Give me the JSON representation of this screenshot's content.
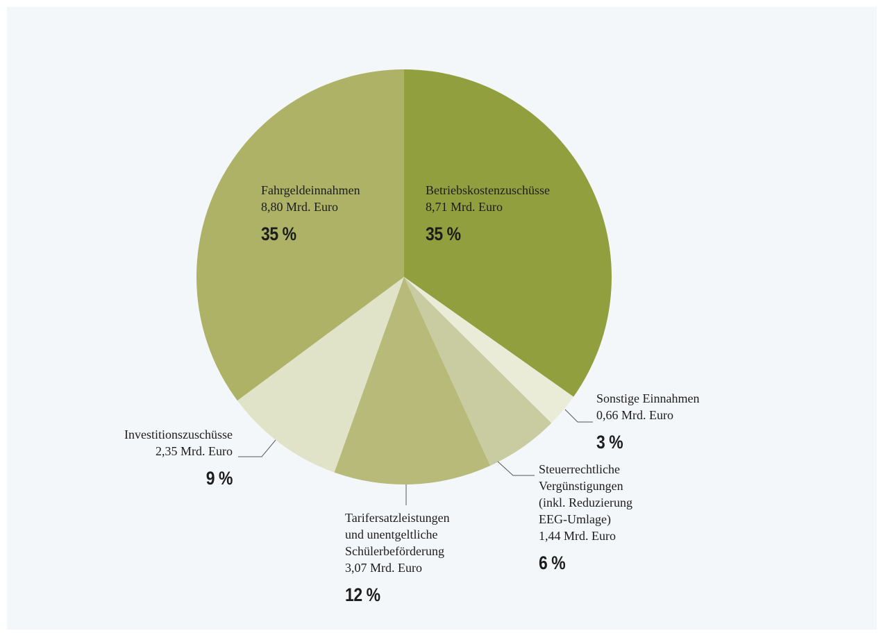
{
  "chart_data": {
    "type": "pie",
    "title": "",
    "unit": "Mrd. Euro",
    "slices": [
      {
        "label": "Betriebskostenzuschüsse",
        "value_label": "8,71 Mrd. Euro",
        "value": 8.71,
        "percent_label": "35 %",
        "percent": 35,
        "color": "#929f3e"
      },
      {
        "label": "Sonstige Einnahmen",
        "value_label": "0,66 Mrd. Euro",
        "value": 0.66,
        "percent_label": "3 %",
        "percent": 3,
        "color": "#eaecd8"
      },
      {
        "label": "Steuerrechtliche Vergünstigungen (inkl. Reduzierung EEG-Umlage)",
        "label_lines": [
          "Steuerrechtliche",
          "Vergünstigungen",
          "(inkl. Reduzierung",
          "EEG-Umlage)"
        ],
        "value_label": "1,44 Mrd. Euro",
        "value": 1.44,
        "percent_label": "6 %",
        "percent": 6,
        "color": "#c9cca1"
      },
      {
        "label": "Tarifersatzleistungen und unentgeltliche Schülerbeförderung",
        "label_lines": [
          "Tarifersatzleistungen",
          "und unentgeltliche",
          "Schülerbeförderung"
        ],
        "value_label": "3,07 Mrd. Euro",
        "value": 3.07,
        "percent_label": "12 %",
        "percent": 12,
        "color": "#b7ba78"
      },
      {
        "label": "Investitionszuschüsse",
        "value_label": "2,35 Mrd. Euro",
        "value": 2.35,
        "percent_label": "9 %",
        "percent": 9,
        "color": "#e1e3c9"
      },
      {
        "label": "Fahrgeldeinnahmen",
        "value_label": "8,80 Mrd. Euro",
        "value": 8.8,
        "percent_label": "35 %",
        "percent": 35,
        "color": "#adb266"
      }
    ],
    "legend": "none"
  }
}
